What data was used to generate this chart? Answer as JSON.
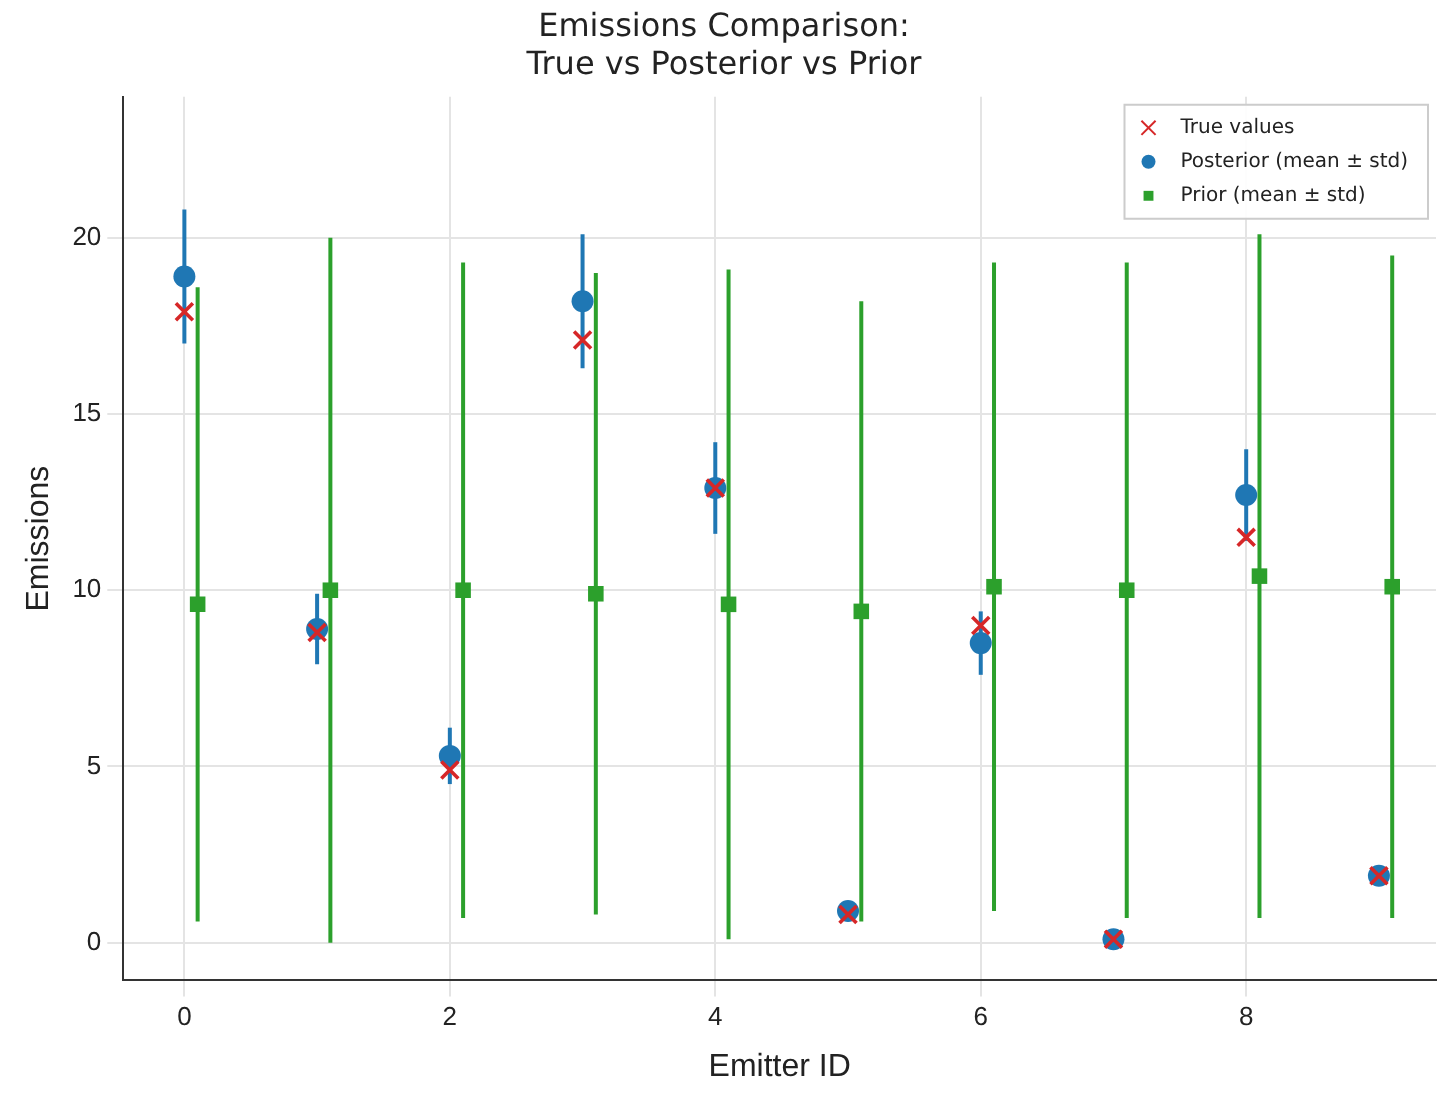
{
  "chart_data": {
    "type": "scatter",
    "title": "Emissions Comparison:\nTrue vs Posterior vs Prior",
    "xlabel": "Emitter ID",
    "ylabel": "Emissions",
    "xlim": [
      -0.46,
      9.43
    ],
    "xticks": [
      0,
      2,
      4,
      6,
      8
    ],
    "ylim": [
      -1.07,
      24
    ],
    "yticks": [
      0,
      5,
      10,
      15,
      20
    ],
    "grid": true,
    "legend": "top right",
    "series": [
      {
        "name": "True values",
        "color": "#d62728",
        "marker": "cross",
        "x": [
          0,
          1,
          2,
          3,
          4,
          5,
          6,
          7,
          8,
          9
        ],
        "values": [
          17.9,
          8.8,
          4.9,
          17.1,
          12.9,
          0.8,
          9.0,
          0.1,
          11.5,
          1.9
        ]
      },
      {
        "name": "Posterior (mean ± std)",
        "color": "#1f77b4",
        "marker": "circle",
        "x": [
          0,
          1,
          2,
          3,
          4,
          5,
          6,
          7,
          8,
          9
        ],
        "values": [
          18.9,
          8.9,
          5.3,
          18.2,
          12.9,
          0.9,
          8.5,
          0.1,
          12.7,
          1.9
        ],
        "errors": [
          1.9,
          1.0,
          0.8,
          1.9,
          1.3,
          0.2,
          0.9,
          0.2,
          1.3,
          0.2
        ]
      },
      {
        "name": "Prior (mean ± std)",
        "color": "#2ca02c",
        "marker": "square",
        "x": [
          0.1,
          1.1,
          2.1,
          3.1,
          4.1,
          5.1,
          6.1,
          7.1,
          8.1,
          9.1
        ],
        "values": [
          9.6,
          10.0,
          10.0,
          9.9,
          9.6,
          9.4,
          10.1,
          10.0,
          10.4,
          10.1
        ],
        "errors": [
          9.0,
          10.0,
          9.3,
          9.1,
          9.5,
          8.8,
          9.2,
          9.3,
          9.7,
          9.4
        ]
      }
    ]
  }
}
